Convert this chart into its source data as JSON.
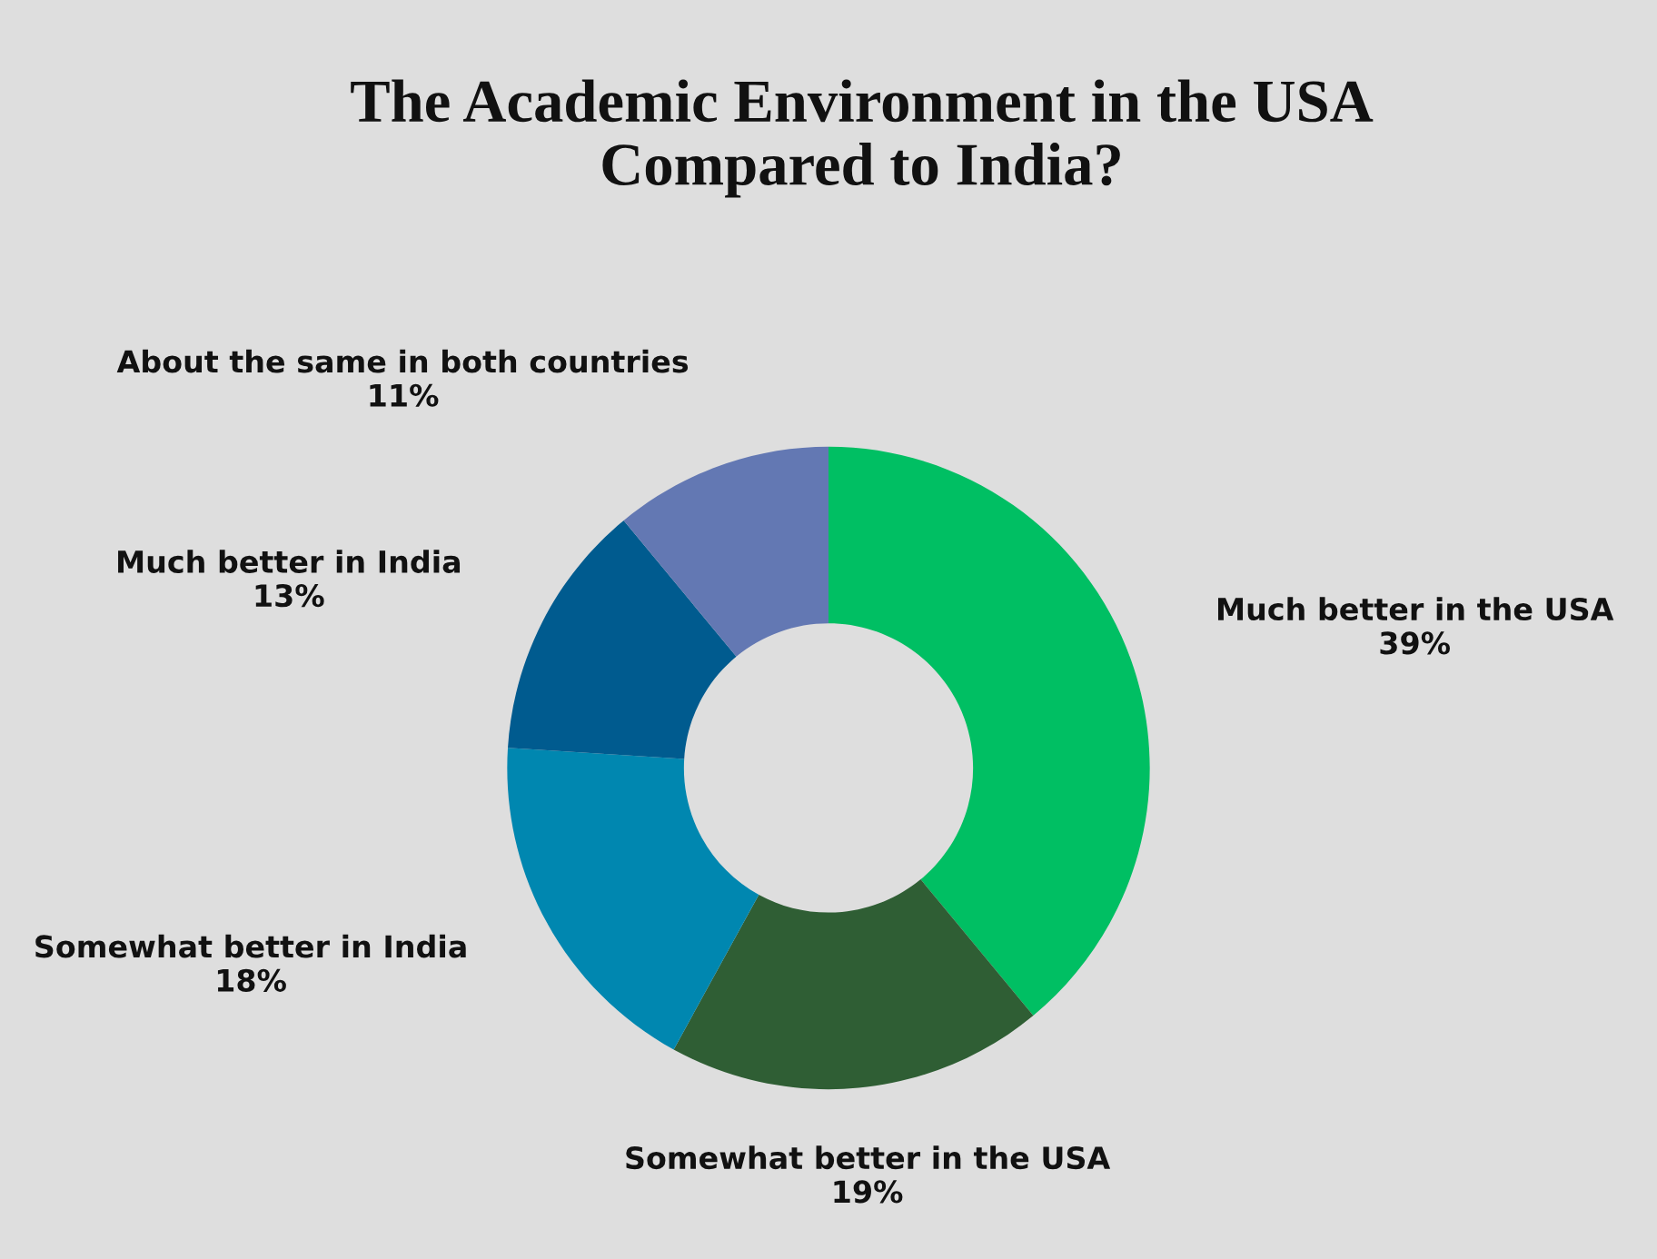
{
  "chart_data": {
    "type": "donut",
    "title": "The Academic Environment in the USA\nCompared to India?",
    "categories": [
      "Much better in the USA",
      "Somewhat better in the USA",
      "Somewhat better in India",
      "Much better in India",
      "About the same in both countries"
    ],
    "values": [
      39,
      19,
      18,
      13,
      11
    ],
    "value_labels": [
      "39%",
      "19%",
      "18%",
      "13%",
      "11%"
    ],
    "colors": [
      "#00bf63",
      "#2f5e34",
      "#0087b0",
      "#005b8f",
      "#6378b3"
    ],
    "legend": false
  }
}
